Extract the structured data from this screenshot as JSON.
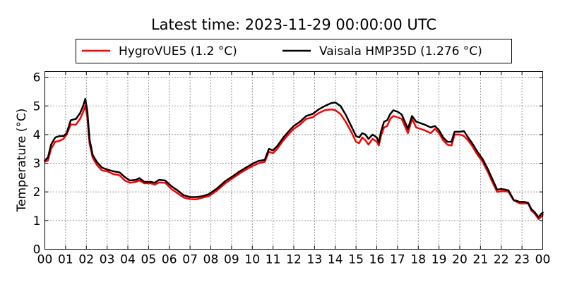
{
  "chart_data": {
    "type": "line",
    "title": "Latest time: 2023-11-29 00:00:00 UTC",
    "xlabel": "",
    "ylabel": "Temperature (°C)",
    "xlim": [
      0,
      24
    ],
    "ylim": [
      0,
      6.2
    ],
    "x_ticks": [
      "00",
      "01",
      "02",
      "03",
      "04",
      "05",
      "06",
      "07",
      "08",
      "09",
      "10",
      "11",
      "12",
      "13",
      "14",
      "15",
      "16",
      "17",
      "18",
      "19",
      "20",
      "21",
      "22",
      "23",
      "00"
    ],
    "y_ticks": [
      0,
      1,
      2,
      3,
      4,
      5,
      6
    ],
    "grid": true,
    "legend_placement": "top-center",
    "series": [
      {
        "name": "HygroVUE5 (1.2 °C)",
        "color": "#ff0000",
        "points": [
          [
            0.0,
            3.05
          ],
          [
            0.15,
            3.1
          ],
          [
            0.3,
            3.5
          ],
          [
            0.5,
            3.75
          ],
          [
            0.7,
            3.78
          ],
          [
            0.9,
            3.85
          ],
          [
            1.05,
            4.0
          ],
          [
            1.25,
            4.35
          ],
          [
            1.5,
            4.35
          ],
          [
            1.7,
            4.55
          ],
          [
            1.85,
            4.8
          ],
          [
            1.95,
            5.0
          ],
          [
            2.05,
            4.6
          ],
          [
            2.15,
            3.7
          ],
          [
            2.3,
            3.2
          ],
          [
            2.5,
            2.95
          ],
          [
            2.75,
            2.75
          ],
          [
            3.0,
            2.72
          ],
          [
            3.3,
            2.62
          ],
          [
            3.6,
            2.58
          ],
          [
            3.85,
            2.4
          ],
          [
            4.1,
            2.32
          ],
          [
            4.4,
            2.35
          ],
          [
            4.55,
            2.4
          ],
          [
            4.8,
            2.3
          ],
          [
            5.1,
            2.3
          ],
          [
            5.3,
            2.25
          ],
          [
            5.5,
            2.33
          ],
          [
            5.8,
            2.32
          ],
          [
            6.1,
            2.1
          ],
          [
            6.4,
            1.95
          ],
          [
            6.7,
            1.8
          ],
          [
            7.0,
            1.75
          ],
          [
            7.3,
            1.74
          ],
          [
            7.6,
            1.8
          ],
          [
            7.9,
            1.85
          ],
          [
            8.3,
            2.05
          ],
          [
            8.7,
            2.3
          ],
          [
            9.0,
            2.45
          ],
          [
            9.4,
            2.65
          ],
          [
            9.7,
            2.78
          ],
          [
            10.0,
            2.9
          ],
          [
            10.3,
            3.0
          ],
          [
            10.6,
            3.05
          ],
          [
            10.8,
            3.4
          ],
          [
            11.0,
            3.35
          ],
          [
            11.2,
            3.5
          ],
          [
            11.5,
            3.8
          ],
          [
            11.8,
            4.05
          ],
          [
            12.0,
            4.2
          ],
          [
            12.3,
            4.35
          ],
          [
            12.6,
            4.55
          ],
          [
            12.9,
            4.6
          ],
          [
            13.2,
            4.75
          ],
          [
            13.5,
            4.85
          ],
          [
            13.8,
            4.88
          ],
          [
            14.0,
            4.85
          ],
          [
            14.25,
            4.72
          ],
          [
            14.5,
            4.45
          ],
          [
            14.8,
            4.05
          ],
          [
            15.0,
            3.75
          ],
          [
            15.15,
            3.7
          ],
          [
            15.3,
            3.9
          ],
          [
            15.45,
            3.8
          ],
          [
            15.6,
            3.65
          ],
          [
            15.8,
            3.85
          ],
          [
            16.0,
            3.75
          ],
          [
            16.1,
            3.62
          ],
          [
            16.2,
            3.95
          ],
          [
            16.35,
            4.25
          ],
          [
            16.5,
            4.3
          ],
          [
            16.65,
            4.55
          ],
          [
            16.8,
            4.65
          ],
          [
            17.0,
            4.6
          ],
          [
            17.2,
            4.55
          ],
          [
            17.35,
            4.3
          ],
          [
            17.5,
            4.05
          ],
          [
            17.7,
            4.55
          ],
          [
            17.9,
            4.25
          ],
          [
            18.1,
            4.2
          ],
          [
            18.3,
            4.15
          ],
          [
            18.6,
            4.05
          ],
          [
            18.8,
            4.2
          ],
          [
            19.0,
            4.05
          ],
          [
            19.2,
            3.8
          ],
          [
            19.4,
            3.65
          ],
          [
            19.6,
            3.62
          ],
          [
            19.75,
            4.0
          ],
          [
            20.0,
            4.0
          ],
          [
            20.2,
            3.95
          ],
          [
            20.4,
            3.8
          ],
          [
            20.6,
            3.6
          ],
          [
            20.85,
            3.3
          ],
          [
            21.1,
            3.05
          ],
          [
            21.35,
            2.7
          ],
          [
            21.6,
            2.3
          ],
          [
            21.8,
            2.0
          ],
          [
            22.0,
            2.02
          ],
          [
            22.2,
            2.02
          ],
          [
            22.35,
            2.0
          ],
          [
            22.6,
            1.7
          ],
          [
            22.9,
            1.6
          ],
          [
            23.1,
            1.6
          ],
          [
            23.3,
            1.6
          ],
          [
            23.45,
            1.35
          ],
          [
            23.6,
            1.25
          ],
          [
            23.8,
            1.05
          ],
          [
            23.95,
            1.15
          ],
          [
            24.0,
            1.2
          ]
        ]
      },
      {
        "name": "Vaisala HMP35D (1.276 °C)",
        "color": "#000000",
        "points": [
          [
            0.0,
            3.1
          ],
          [
            0.15,
            3.2
          ],
          [
            0.3,
            3.65
          ],
          [
            0.5,
            3.9
          ],
          [
            0.7,
            3.95
          ],
          [
            0.9,
            3.95
          ],
          [
            1.05,
            4.05
          ],
          [
            1.25,
            4.5
          ],
          [
            1.5,
            4.55
          ],
          [
            1.7,
            4.75
          ],
          [
            1.85,
            5.0
          ],
          [
            1.95,
            5.25
          ],
          [
            2.05,
            4.8
          ],
          [
            2.15,
            3.85
          ],
          [
            2.3,
            3.3
          ],
          [
            2.5,
            3.05
          ],
          [
            2.75,
            2.85
          ],
          [
            3.0,
            2.78
          ],
          [
            3.3,
            2.72
          ],
          [
            3.6,
            2.68
          ],
          [
            3.85,
            2.52
          ],
          [
            4.1,
            2.4
          ],
          [
            4.4,
            2.42
          ],
          [
            4.55,
            2.48
          ],
          [
            4.8,
            2.35
          ],
          [
            5.1,
            2.35
          ],
          [
            5.3,
            2.32
          ],
          [
            5.5,
            2.42
          ],
          [
            5.8,
            2.4
          ],
          [
            6.1,
            2.2
          ],
          [
            6.4,
            2.05
          ],
          [
            6.7,
            1.88
          ],
          [
            7.0,
            1.82
          ],
          [
            7.3,
            1.82
          ],
          [
            7.6,
            1.85
          ],
          [
            7.9,
            1.92
          ],
          [
            8.3,
            2.12
          ],
          [
            8.7,
            2.38
          ],
          [
            9.0,
            2.52
          ],
          [
            9.4,
            2.72
          ],
          [
            9.7,
            2.85
          ],
          [
            10.0,
            2.98
          ],
          [
            10.3,
            3.08
          ],
          [
            10.6,
            3.12
          ],
          [
            10.8,
            3.5
          ],
          [
            11.0,
            3.45
          ],
          [
            11.2,
            3.6
          ],
          [
            11.5,
            3.9
          ],
          [
            11.8,
            4.15
          ],
          [
            12.0,
            4.3
          ],
          [
            12.3,
            4.45
          ],
          [
            12.6,
            4.65
          ],
          [
            12.9,
            4.72
          ],
          [
            13.2,
            4.88
          ],
          [
            13.5,
            5.0
          ],
          [
            13.8,
            5.1
          ],
          [
            14.0,
            5.12
          ],
          [
            14.25,
            5.0
          ],
          [
            14.5,
            4.7
          ],
          [
            14.8,
            4.25
          ],
          [
            15.0,
            3.95
          ],
          [
            15.15,
            3.9
          ],
          [
            15.3,
            4.05
          ],
          [
            15.45,
            4.0
          ],
          [
            15.6,
            3.85
          ],
          [
            15.8,
            4.0
          ],
          [
            16.0,
            3.9
          ],
          [
            16.1,
            3.72
          ],
          [
            16.2,
            4.1
          ],
          [
            16.35,
            4.45
          ],
          [
            16.5,
            4.5
          ],
          [
            16.65,
            4.72
          ],
          [
            16.8,
            4.85
          ],
          [
            17.0,
            4.8
          ],
          [
            17.2,
            4.7
          ],
          [
            17.35,
            4.45
          ],
          [
            17.5,
            4.2
          ],
          [
            17.7,
            4.65
          ],
          [
            17.9,
            4.45
          ],
          [
            18.1,
            4.4
          ],
          [
            18.3,
            4.35
          ],
          [
            18.6,
            4.25
          ],
          [
            18.8,
            4.3
          ],
          [
            19.0,
            4.15
          ],
          [
            19.2,
            3.9
          ],
          [
            19.4,
            3.75
          ],
          [
            19.6,
            3.75
          ],
          [
            19.75,
            4.1
          ],
          [
            20.0,
            4.1
          ],
          [
            20.2,
            4.12
          ],
          [
            20.4,
            3.9
          ],
          [
            20.6,
            3.7
          ],
          [
            20.85,
            3.4
          ],
          [
            21.1,
            3.15
          ],
          [
            21.35,
            2.8
          ],
          [
            21.6,
            2.4
          ],
          [
            21.8,
            2.08
          ],
          [
            22.0,
            2.1
          ],
          [
            22.2,
            2.08
          ],
          [
            22.35,
            2.05
          ],
          [
            22.6,
            1.72
          ],
          [
            22.9,
            1.65
          ],
          [
            23.1,
            1.65
          ],
          [
            23.3,
            1.62
          ],
          [
            23.45,
            1.4
          ],
          [
            23.6,
            1.3
          ],
          [
            23.8,
            1.12
          ],
          [
            23.95,
            1.25
          ],
          [
            24.0,
            1.28
          ]
        ]
      }
    ]
  }
}
